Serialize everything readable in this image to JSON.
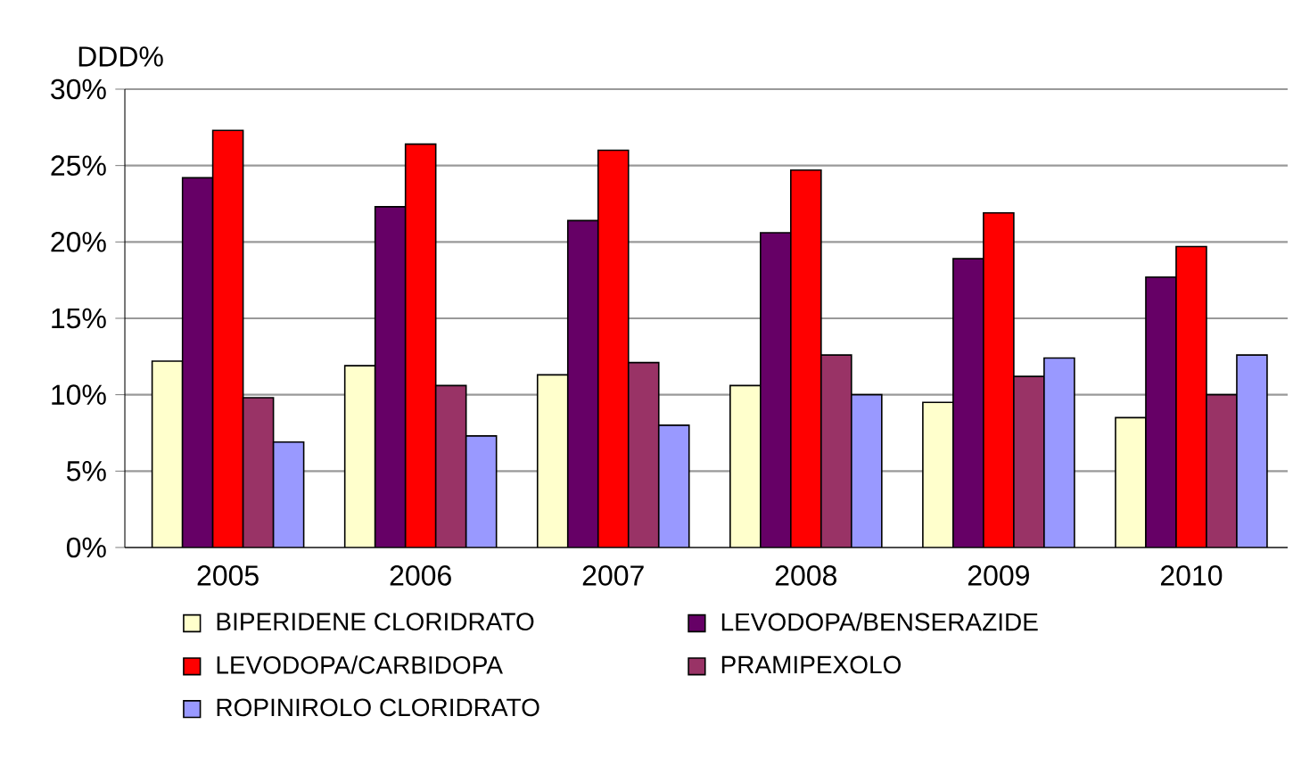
{
  "chart_data": {
    "type": "bar",
    "ylabel": "DDD%",
    "categories": [
      "2005",
      "2006",
      "2007",
      "2008",
      "2009",
      "2010"
    ],
    "series": [
      {
        "name": "BIPERIDENE CLORIDRATO",
        "color": "#ffffcc",
        "values": [
          12.2,
          11.9,
          11.3,
          10.6,
          9.5,
          8.5
        ]
      },
      {
        "name": "LEVODOPA/BENSERAZIDE",
        "color": "#660066",
        "values": [
          24.2,
          22.3,
          21.4,
          20.6,
          18.9,
          17.7
        ]
      },
      {
        "name": "LEVODOPA/CARBIDOPA",
        "color": "#ff0000",
        "values": [
          27.3,
          26.4,
          26.0,
          24.7,
          21.9,
          19.7
        ]
      },
      {
        "name": "PRAMIPEXOLO",
        "color": "#993366",
        "values": [
          9.8,
          10.6,
          12.1,
          12.6,
          11.2,
          10.0
        ]
      },
      {
        "name": "ROPINIROLO CLORIDRATO",
        "color": "#9999ff",
        "values": [
          6.9,
          7.3,
          8.0,
          10.0,
          12.4,
          12.6
        ]
      }
    ],
    "ylim": [
      0,
      30
    ],
    "yticks": [
      {
        "value": 0,
        "label": "0%"
      },
      {
        "value": 5,
        "label": "5%"
      },
      {
        "value": 10,
        "label": "10%"
      },
      {
        "value": 15,
        "label": "15%"
      },
      {
        "value": 20,
        "label": "20%"
      },
      {
        "value": 25,
        "label": "25%"
      },
      {
        "value": 30,
        "label": "30%"
      }
    ],
    "grid": "y",
    "legend": "bottom"
  }
}
